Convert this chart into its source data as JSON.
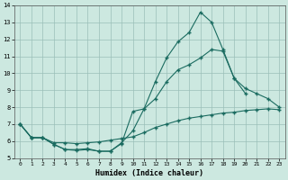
{
  "xlabel": "Humidex (Indice chaleur)",
  "xlim": [
    -0.5,
    23.5
  ],
  "ylim": [
    5,
    14
  ],
  "xticks": [
    0,
    1,
    2,
    3,
    4,
    5,
    6,
    7,
    8,
    9,
    10,
    11,
    12,
    13,
    14,
    15,
    16,
    17,
    18,
    19,
    20,
    21,
    22,
    23
  ],
  "yticks": [
    5,
    6,
    7,
    8,
    9,
    10,
    11,
    12,
    13,
    14
  ],
  "bg_color": "#cce8e0",
  "line_color": "#1a6b60",
  "line1_x": [
    0,
    1,
    2,
    3,
    4,
    5,
    6,
    7,
    8,
    9,
    10,
    11,
    12,
    13,
    14,
    15,
    16,
    17,
    18,
    19,
    20
  ],
  "line1_y": [
    7.0,
    6.2,
    6.2,
    5.8,
    5.5,
    5.5,
    5.55,
    5.4,
    5.4,
    5.85,
    7.75,
    7.9,
    9.5,
    10.9,
    11.85,
    12.4,
    13.6,
    13.0,
    11.4,
    9.7,
    8.8
  ],
  "line2_x": [
    0,
    1,
    2,
    3,
    4,
    5,
    6,
    7,
    8,
    9,
    10,
    11,
    12,
    13,
    14,
    15,
    16,
    17,
    18,
    19,
    20,
    21,
    22,
    23
  ],
  "line2_y": [
    7.0,
    6.2,
    6.2,
    5.8,
    5.5,
    5.45,
    5.5,
    5.4,
    5.4,
    5.9,
    6.6,
    7.9,
    8.5,
    9.5,
    10.2,
    10.5,
    10.9,
    11.4,
    11.3,
    9.7,
    9.1,
    8.8,
    8.5,
    8.0
  ],
  "line3_x": [
    0,
    1,
    2,
    3,
    4,
    5,
    6,
    7,
    8,
    9,
    10,
    11,
    12,
    13,
    14,
    15,
    16,
    17,
    18,
    19,
    20,
    21,
    22,
    23
  ],
  "line3_y": [
    7.0,
    6.2,
    6.2,
    5.9,
    5.9,
    5.85,
    5.9,
    5.95,
    6.05,
    6.15,
    6.25,
    6.5,
    6.8,
    7.0,
    7.2,
    7.35,
    7.45,
    7.55,
    7.65,
    7.7,
    7.8,
    7.85,
    7.9,
    7.85
  ]
}
